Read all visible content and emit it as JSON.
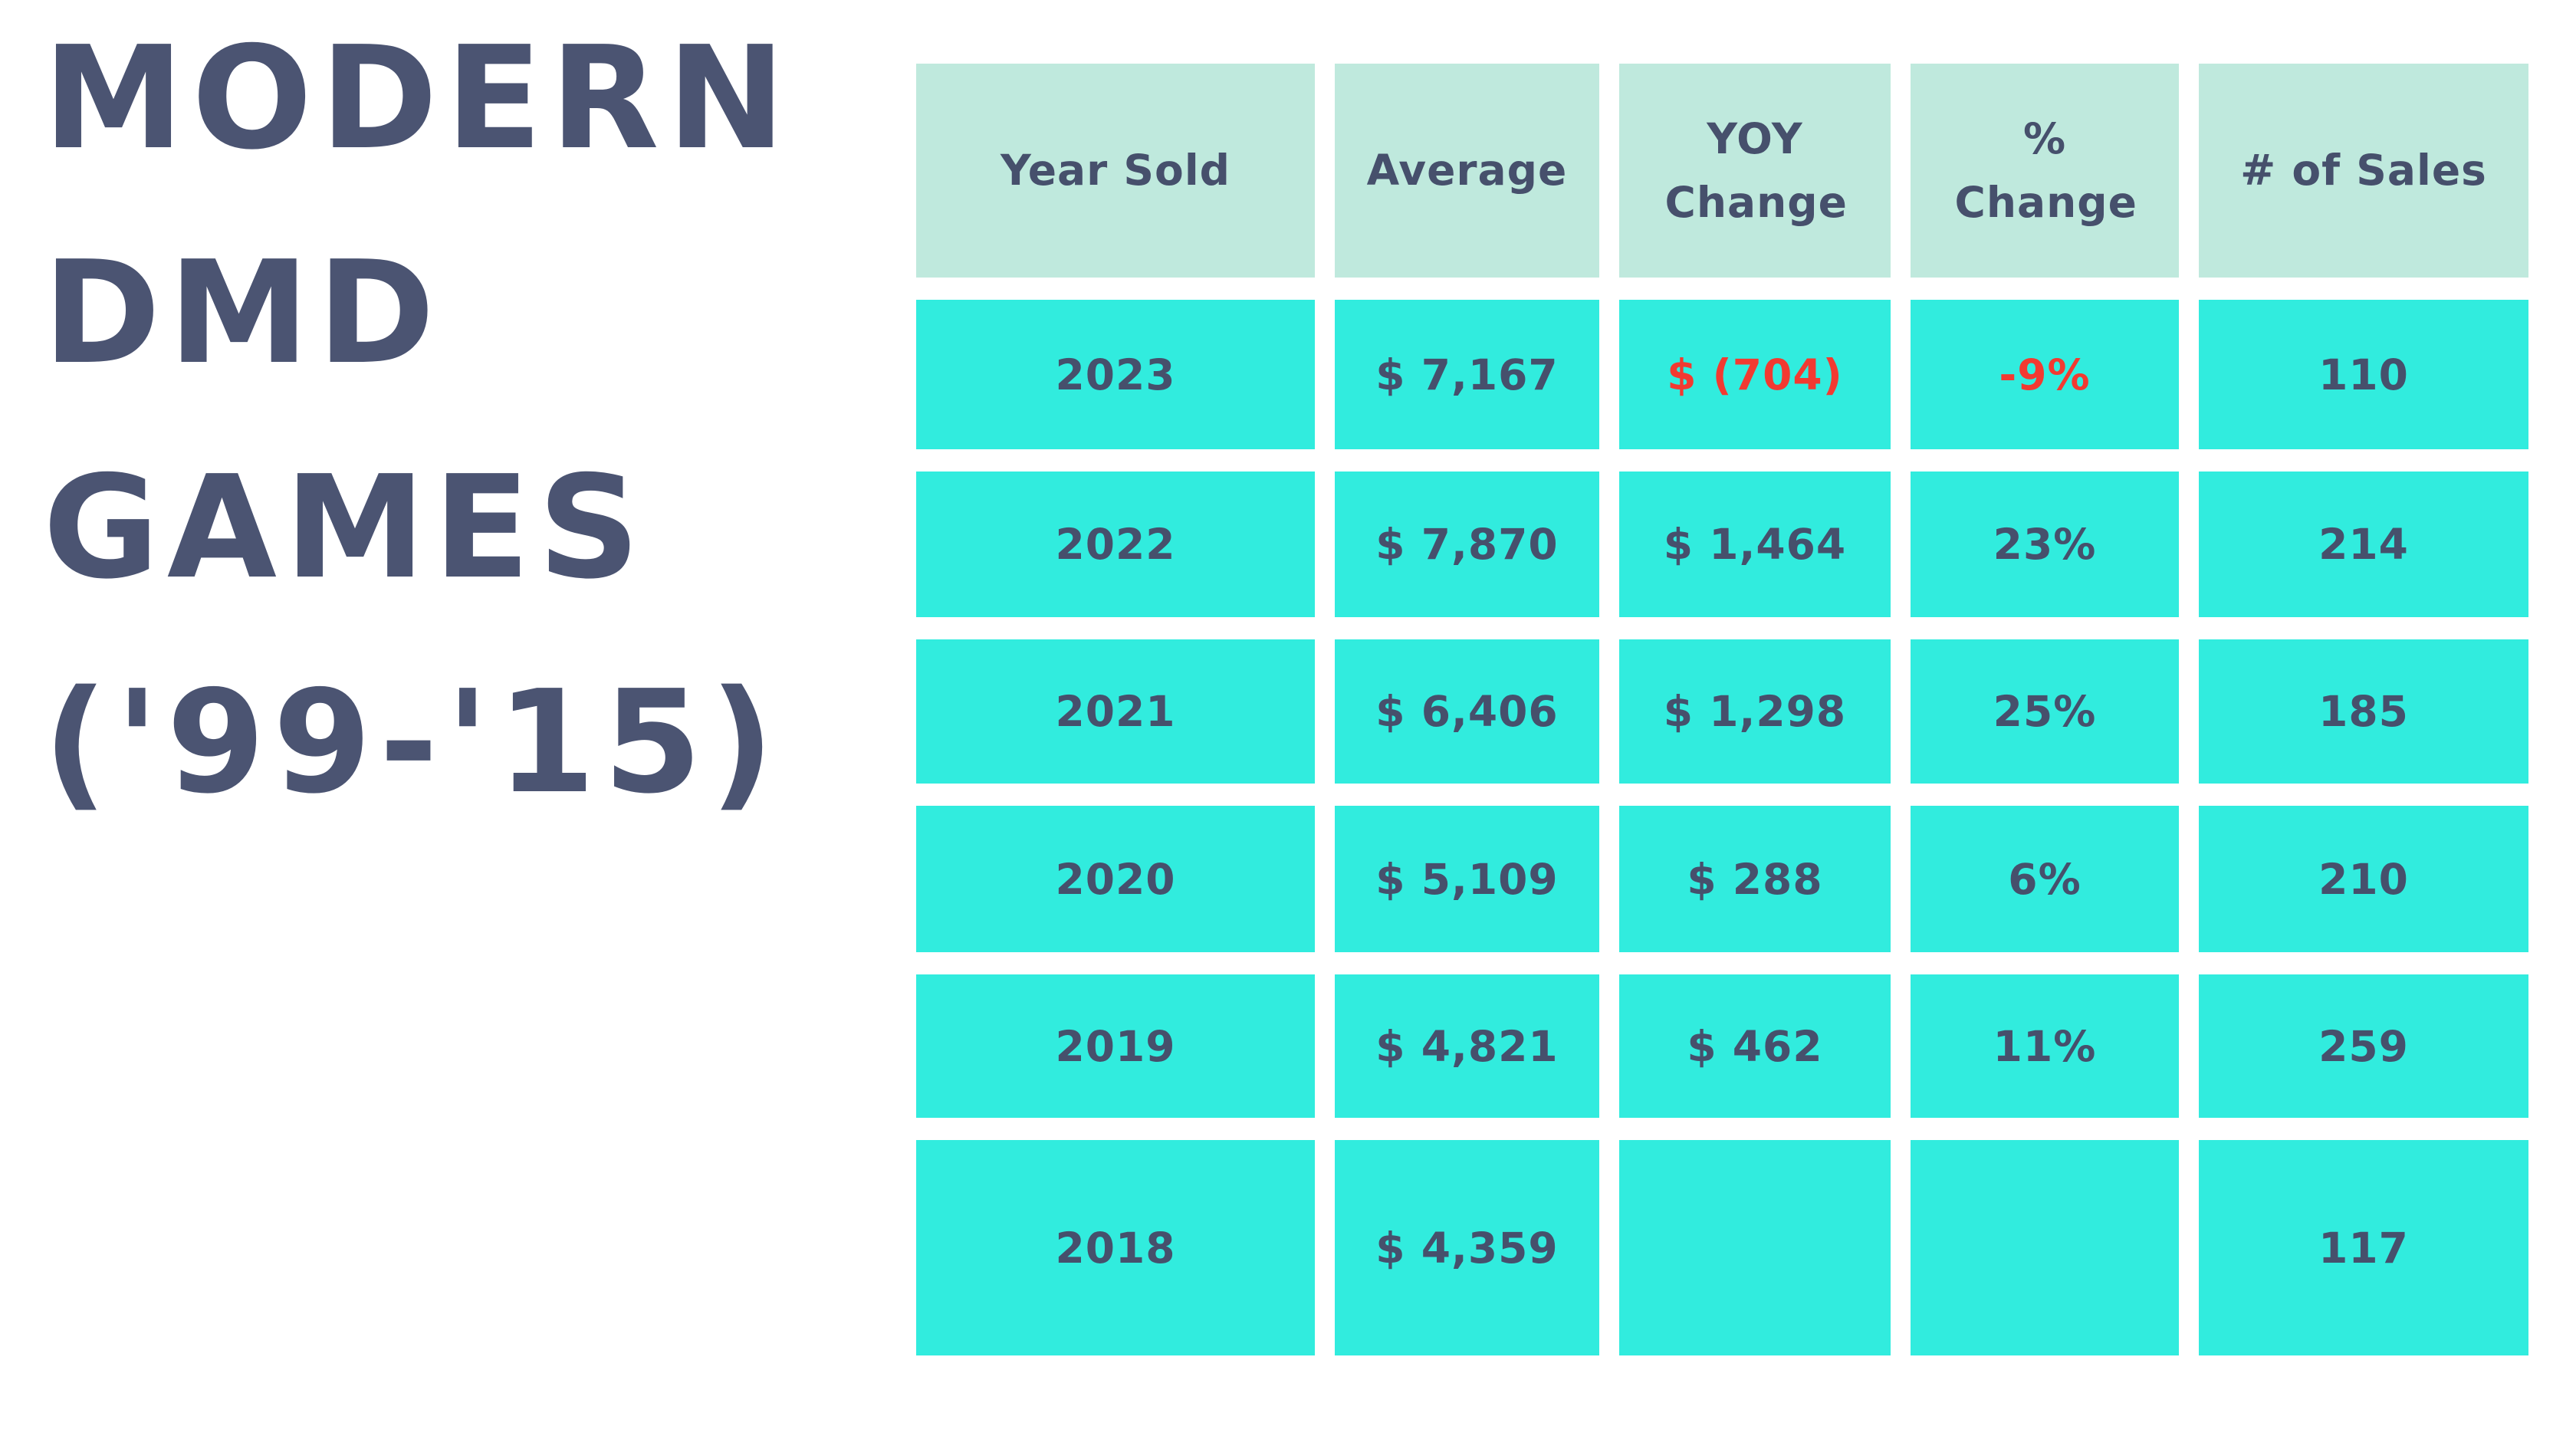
{
  "title": {
    "lines": [
      "MODERN",
      "DMD",
      "GAMES",
      "('99-'15)"
    ]
  },
  "chart_data": {
    "type": "table",
    "title": "MODERN DMD GAMES ('99-'15)",
    "columns": [
      "Year Sold",
      "Average",
      "YOY Change",
      "% Change",
      "# of Sales"
    ],
    "rows": [
      [
        "2023",
        "$ 7,167",
        "$ (704)",
        "-9%",
        "110"
      ],
      [
        "2022",
        "$ 7,870",
        "$ 1,464",
        "23%",
        "214"
      ],
      [
        "2021",
        "$ 6,406",
        "$ 1,298",
        "25%",
        "185"
      ],
      [
        "2020",
        "$ 5,109",
        "$ 288",
        "6%",
        "210"
      ],
      [
        "2019",
        "$ 4,821",
        "$ 462",
        "11%",
        "259"
      ],
      [
        "2018",
        "$ 4,359",
        "",
        "",
        "117"
      ]
    ],
    "numeric": {
      "years": [
        2023,
        2022,
        2021,
        2020,
        2019,
        2018
      ],
      "average_usd": [
        7167,
        7870,
        6406,
        5109,
        4821,
        4359
      ],
      "yoy_change_usd": [
        -704,
        1464,
        1298,
        288,
        462,
        null
      ],
      "pct_change": [
        -9,
        23,
        25,
        6,
        11,
        null
      ],
      "num_sales": [
        110,
        214,
        185,
        210,
        259,
        117
      ]
    },
    "layout_hints": {
      "negative_values_shown_in_red": [
        "2023 YOY Change",
        "2023 % Change"
      ],
      "legend_position": "none",
      "grid": "card-style cells with white gutters"
    },
    "colors": {
      "title_text": "#4b5472",
      "header_bg": "#bfe9dd",
      "cell_bg": "#31ecde",
      "cell_text": "#46506c",
      "negative_text": "#f23a31",
      "background": "#ffffff"
    }
  }
}
